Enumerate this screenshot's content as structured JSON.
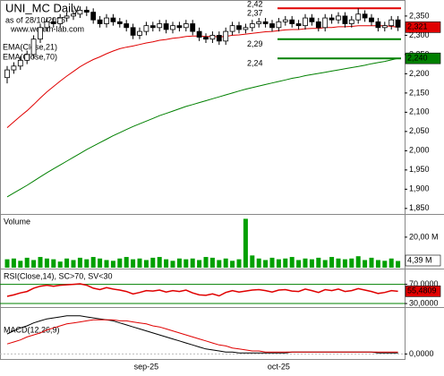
{
  "chart_data": [
    {
      "type": "candlestick",
      "title": "UNI_MC Daily",
      "subtitle": "as of 28/10/2025",
      "source": "www.wealth-lab.com",
      "categories": [
        null,
        null,
        null,
        null,
        null,
        null,
        null,
        null,
        null,
        null,
        null,
        null,
        null,
        null,
        null,
        null,
        null,
        null,
        null,
        null,
        null,
        "sep-25",
        null,
        null,
        null,
        null,
        null,
        null,
        null,
        null,
        null,
        null,
        null,
        null,
        null,
        null,
        null,
        null,
        null,
        null,
        null,
        "oct-25",
        null,
        null,
        null,
        null,
        null,
        null,
        null,
        null,
        null,
        null,
        null,
        null,
        null,
        null,
        null,
        null,
        null,
        null
      ],
      "open": [
        2190,
        2210,
        2220,
        2235,
        2250,
        2290,
        2320,
        2335,
        2330,
        2345,
        2350,
        2355,
        2365,
        2360,
        2340,
        2330,
        2345,
        2335,
        2330,
        2320,
        2300,
        2310,
        2325,
        2320,
        2330,
        2315,
        2325,
        2320,
        2330,
        2310,
        2295,
        2290,
        2300,
        2285,
        2310,
        2325,
        2315,
        2320,
        2330,
        2335,
        2330,
        2320,
        2335,
        2340,
        2330,
        2325,
        2345,
        2335,
        2320,
        2345,
        2340,
        2350,
        2330,
        2340,
        2355,
        2345,
        2335,
        2320,
        2325,
        2340
      ],
      "high": [
        2220,
        2230,
        2245,
        2260,
        2300,
        2330,
        2345,
        2345,
        2355,
        2360,
        2365,
        2375,
        2375,
        2370,
        2350,
        2355,
        2355,
        2345,
        2340,
        2330,
        2320,
        2335,
        2335,
        2340,
        2340,
        2335,
        2335,
        2340,
        2340,
        2320,
        2305,
        2310,
        2310,
        2320,
        2335,
        2335,
        2330,
        2340,
        2345,
        2345,
        2340,
        2345,
        2350,
        2350,
        2340,
        2355,
        2355,
        2345,
        2355,
        2355,
        2360,
        2360,
        2350,
        2370,
        2365,
        2355,
        2345,
        2335,
        2350,
        2350
      ],
      "low": [
        2175,
        2200,
        2210,
        2225,
        2240,
        2280,
        2310,
        2320,
        2320,
        2335,
        2340,
        2345,
        2350,
        2330,
        2320,
        2320,
        2325,
        2320,
        2310,
        2290,
        2290,
        2300,
        2310,
        2310,
        2305,
        2305,
        2310,
        2310,
        2300,
        2285,
        2280,
        2280,
        2275,
        2275,
        2300,
        2305,
        2305,
        2310,
        2320,
        2320,
        2310,
        2310,
        2325,
        2320,
        2315,
        2315,
        2325,
        2310,
        2310,
        2330,
        2330,
        2320,
        2320,
        2330,
        2335,
        2325,
        2310,
        2310,
        2315,
        2311
      ],
      "close": [
        2210,
        2220,
        2235,
        2250,
        2290,
        2320,
        2335,
        2330,
        2345,
        2350,
        2355,
        2365,
        2360,
        2340,
        2330,
        2345,
        2335,
        2330,
        2320,
        2300,
        2310,
        2325,
        2320,
        2330,
        2315,
        2325,
        2320,
        2330,
        2310,
        2295,
        2290,
        2300,
        2285,
        2310,
        2325,
        2315,
        2320,
        2330,
        2335,
        2330,
        2320,
        2335,
        2340,
        2330,
        2325,
        2345,
        2335,
        2320,
        2345,
        2340,
        2350,
        2330,
        2340,
        2355,
        2345,
        2335,
        2320,
        2325,
        2340,
        2321
      ],
      "up_color": "#ffffff",
      "down_color": "#000000",
      "series": [
        {
          "name": "EMA(Close,21)",
          "color": "#e00000",
          "last_label": "2,321",
          "values": [
            2060,
            2075,
            2090,
            2104,
            2120,
            2137,
            2153,
            2167,
            2181,
            2194,
            2206,
            2218,
            2228,
            2237,
            2244,
            2252,
            2259,
            2265,
            2269,
            2272,
            2276,
            2280,
            2283,
            2287,
            2289,
            2292,
            2294,
            2297,
            2298,
            2298,
            2297,
            2297,
            2296,
            2297,
            2300,
            2301,
            2303,
            2305,
            2307,
            2309,
            2310,
            2312,
            2314,
            2315,
            2315,
            2317,
            2318,
            2318,
            2320,
            2320,
            2322,
            2322,
            2323,
            2325,
            2325,
            2325,
            2325,
            2325,
            2323,
            2321
          ]
        },
        {
          "name": "EMA(Close,70)",
          "color": "#008000",
          "last_label": "2,240",
          "values": [
            1880,
            1890,
            1900,
            1910,
            1921,
            1932,
            1943,
            1953,
            1963,
            1973,
            1983,
            1993,
            2003,
            2012,
            2021,
            2030,
            2039,
            2047,
            2055,
            2063,
            2070,
            2077,
            2084,
            2091,
            2097,
            2103,
            2109,
            2115,
            2120,
            2125,
            2130,
            2135,
            2140,
            2145,
            2150,
            2155,
            2160,
            2164,
            2168,
            2172,
            2176,
            2180,
            2184,
            2188,
            2191,
            2195,
            2198,
            2201,
            2204,
            2207,
            2210,
            2213,
            2216,
            2219,
            2222,
            2226,
            2229,
            2232,
            2236,
            2240
          ]
        }
      ],
      "levels": [
        {
          "label": "2,42",
          "value": 2420
        },
        {
          "label": "2,37",
          "value": 2370,
          "color": "#e00000"
        },
        {
          "label": "2,29",
          "value": 2290,
          "color": "#008000"
        },
        {
          "label": "2,24",
          "value": 2240,
          "color": "#008000"
        }
      ],
      "ylim": [
        1838,
        2387
      ],
      "yticks": [
        {
          "value": 2350,
          "label": "2,350"
        },
        {
          "value": 2300,
          "label": "2,300"
        },
        {
          "value": 2250,
          "label": "2,250"
        },
        {
          "value": 2200,
          "label": "2,200"
        },
        {
          "value": 2150,
          "label": "2,150"
        },
        {
          "value": 2100,
          "label": "2,100"
        },
        {
          "value": 2050,
          "label": "2,050"
        },
        {
          "value": 2000,
          "label": "2,000"
        },
        {
          "value": 1950,
          "label": "1,950"
        },
        {
          "value": 1900,
          "label": "1,900"
        },
        {
          "value": 1850,
          "label": "1,850"
        }
      ]
    },
    {
      "type": "bar",
      "title": "Volume",
      "color": "#00a000",
      "last_label": "4,39 M",
      "values": [
        5500000,
        6000000,
        4500000,
        6500000,
        5000000,
        7000000,
        6000000,
        5500000,
        4000000,
        6000000,
        5000000,
        6500000,
        5500000,
        7000000,
        6000000,
        5000000,
        4500000,
        6000000,
        7000000,
        5500000,
        6000000,
        5000000,
        6500000,
        7000000,
        5500000,
        4500000,
        6000000,
        5500000,
        6000000,
        5000000,
        7000000,
        6500000,
        5000000,
        6000000,
        4500000,
        5500000,
        32000000,
        8000000,
        6000000,
        5000000,
        6500000,
        5500000,
        6000000,
        7000000,
        5000000,
        6000000,
        5500000,
        6500000,
        5000000,
        7000000,
        6000000,
        5500000,
        6000000,
        7500000,
        5000000,
        6500000,
        5000000,
        4500000,
        6000000,
        4390000
      ],
      "ylim": [
        0,
        34000000
      ],
      "yticks": [
        {
          "value": 20000000,
          "label": "20,00 M"
        }
      ]
    },
    {
      "type": "line",
      "title": "RSI(Close,14), SC>70, SV<30",
      "color": "#e00000",
      "level_color": "#008000",
      "last_label": "55,4809",
      "values": [
        45,
        48,
        52,
        55,
        62,
        66,
        68,
        66,
        68,
        69,
        70,
        71,
        68,
        62,
        59,
        63,
        60,
        58,
        55,
        50,
        53,
        57,
        56,
        58,
        54,
        57,
        55,
        58,
        52,
        48,
        47,
        50,
        46,
        53,
        57,
        54,
        56,
        58,
        59,
        57,
        54,
        58,
        59,
        56,
        55,
        60,
        57,
        53,
        59,
        57,
        60,
        55,
        57,
        61,
        58,
        55,
        51,
        53,
        57,
        55.4809
      ],
      "ylim": [
        24.5,
        99
      ],
      "yticks": [
        {
          "value": 70,
          "label": "70,0000"
        },
        {
          "value": 30,
          "label": "30,0000"
        }
      ]
    },
    {
      "type": "line",
      "title": "MACD(12,26,9)",
      "series": [
        {
          "color": "#000000",
          "values": [
            20,
            23,
            26,
            28,
            31,
            33,
            35,
            36,
            37,
            38,
            38,
            38,
            37,
            36,
            35,
            34,
            33,
            31,
            29,
            27,
            25,
            23,
            21,
            19,
            17,
            15,
            13,
            11,
            9,
            7,
            5,
            4,
            3,
            2,
            2,
            1,
            1,
            1,
            1,
            1,
            1,
            1,
            1,
            2,
            2,
            2,
            2,
            2,
            2,
            2,
            2,
            2,
            2,
            2,
            2,
            2,
            1,
            1,
            1,
            1
          ]
        },
        {
          "color": "#e00000",
          "values": [
            10,
            12,
            14,
            17,
            19,
            21,
            24,
            26,
            28,
            30,
            31,
            32,
            33,
            34,
            34,
            34,
            34,
            33,
            33,
            32,
            31,
            30,
            28,
            27,
            25,
            23,
            21,
            19,
            17,
            15,
            13,
            11,
            9,
            8,
            6,
            5,
            4,
            3,
            3,
            2,
            2,
            2,
            2,
            2,
            2,
            2,
            2,
            2,
            2,
            2,
            2,
            2,
            2,
            2,
            2,
            2,
            2,
            2,
            2,
            2
          ]
        }
      ],
      "ylim": [
        -5,
        45
      ],
      "yticks": [
        {
          "value": 0,
          "label": "0,0000"
        }
      ]
    }
  ]
}
